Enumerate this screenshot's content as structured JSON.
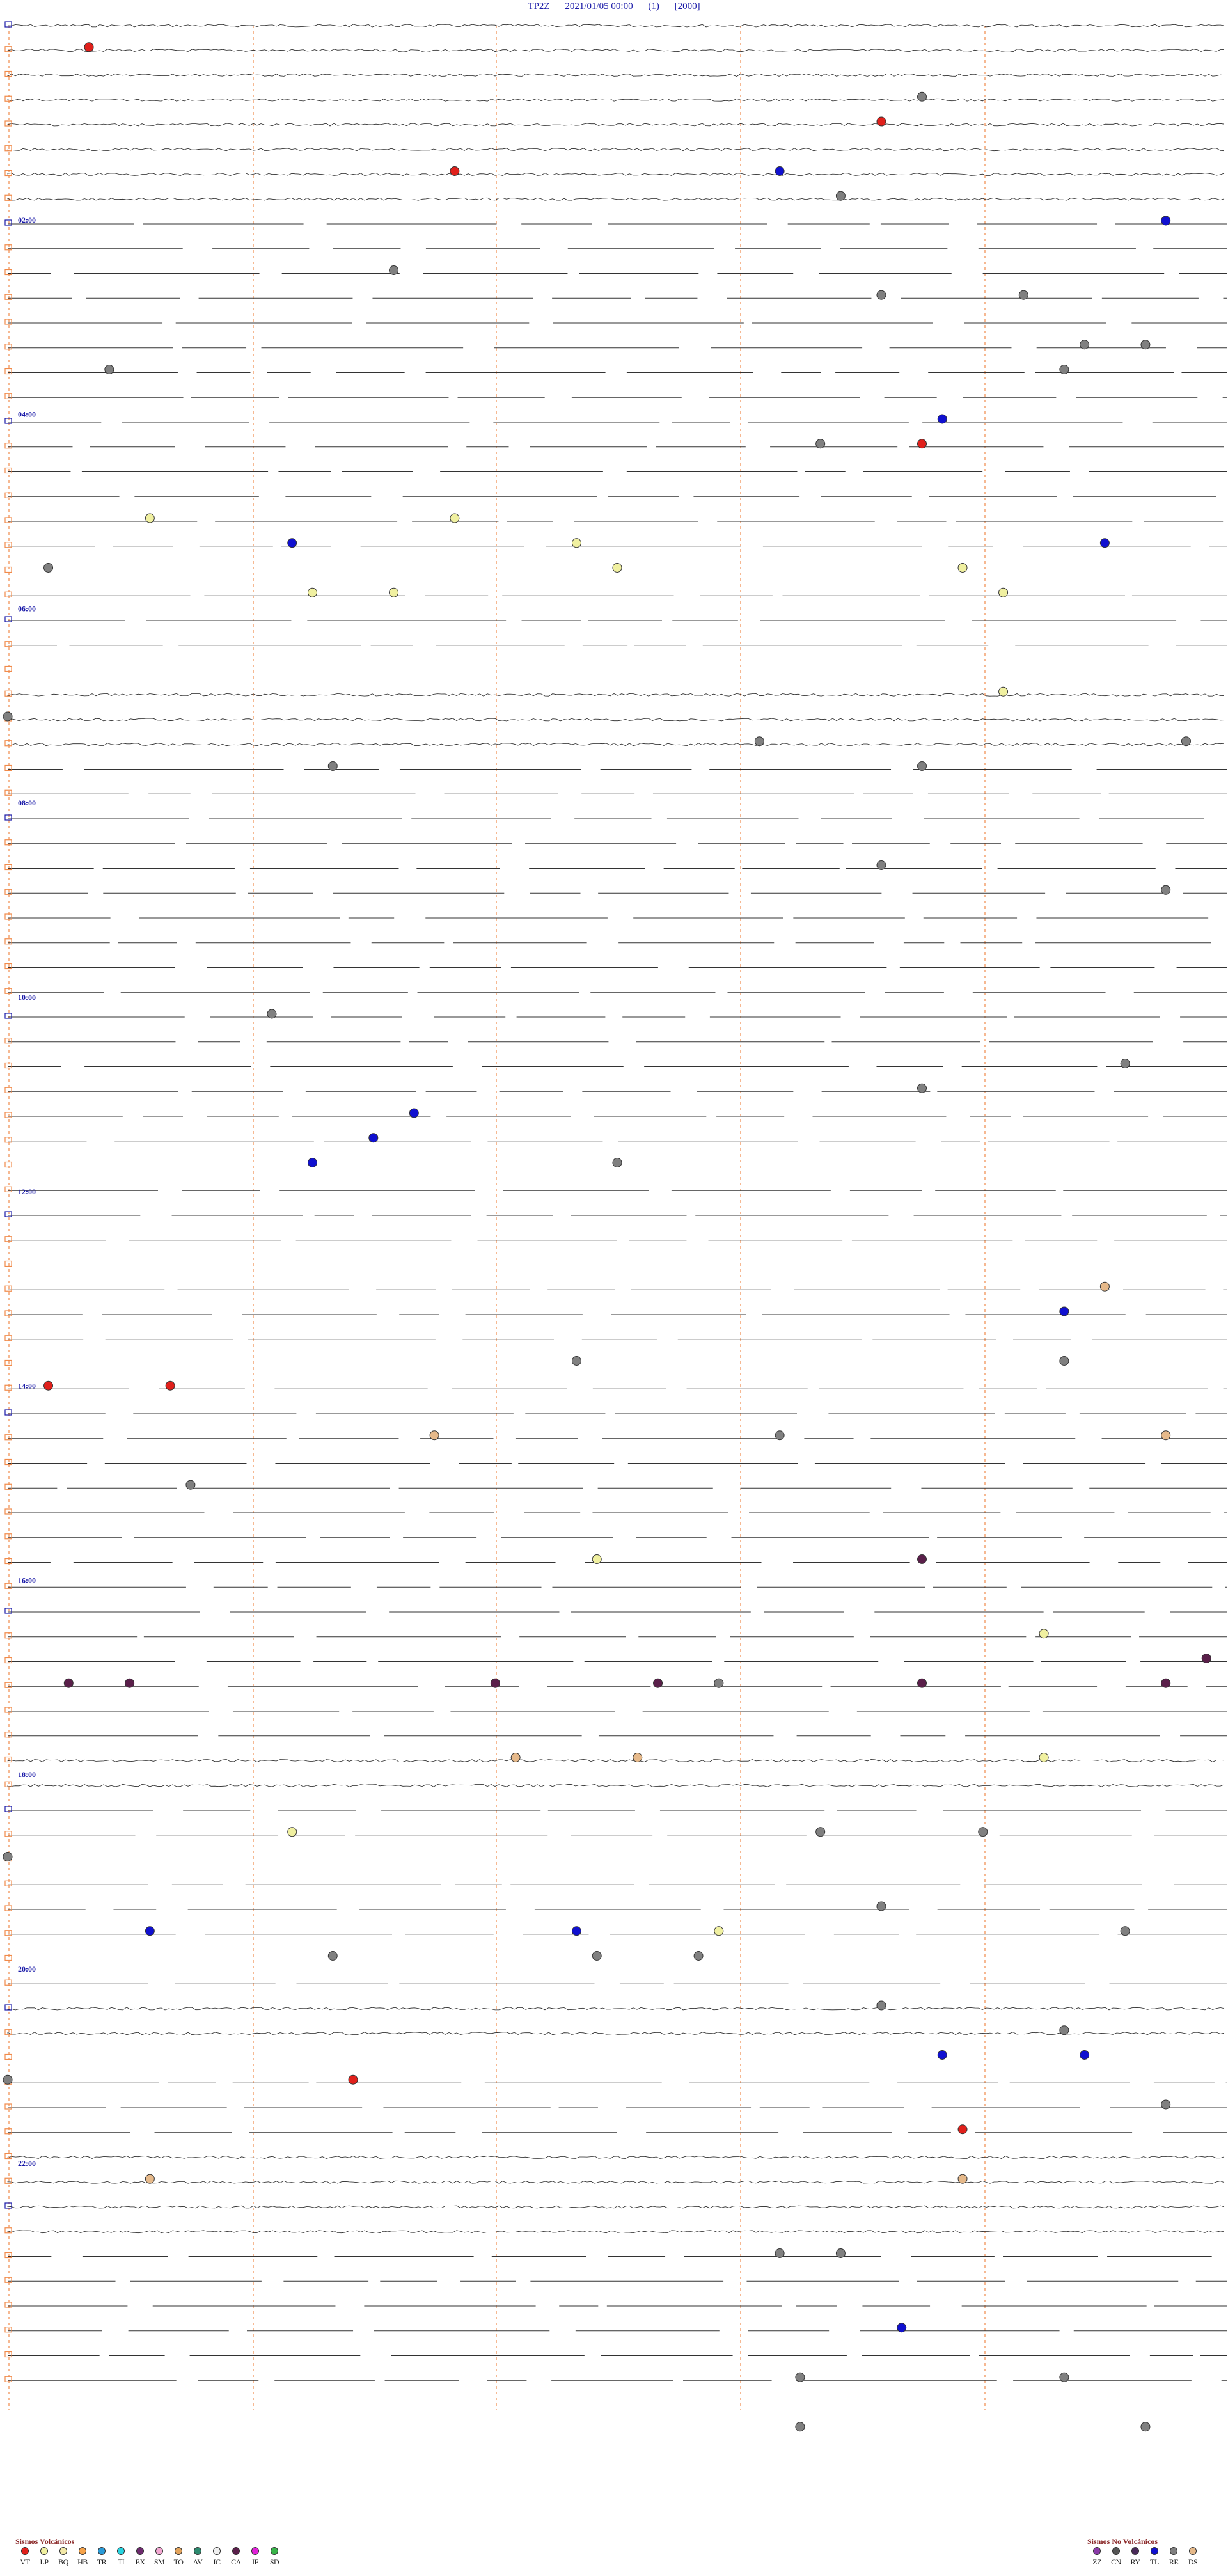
{
  "header": {
    "station": "TP2Z",
    "datetime": "2021/01/05 00:00",
    "channel": "(1)",
    "scale": "[2000]"
  },
  "hour_labels": [
    "02:00",
    "04:00",
    "06:00",
    "08:00",
    "10:00",
    "12:00",
    "14:00",
    "16:00",
    "18:00",
    "20:00",
    "22:00"
  ],
  "legend_volcanic": {
    "title": "Sismos Volcánicos",
    "items": [
      {
        "code": "VT",
        "color": "#e0201b"
      },
      {
        "code": "LP",
        "color": "#f0f0a0"
      },
      {
        "code": "BQ",
        "color": "#f3e9a8"
      },
      {
        "code": "HB",
        "color": "#f6a34a"
      },
      {
        "code": "TR",
        "color": "#2a9bd8"
      },
      {
        "code": "TI",
        "color": "#27d4e0"
      },
      {
        "code": "EX",
        "color": "#6d2a6e"
      },
      {
        "code": "SM",
        "color": "#f3a7d2"
      },
      {
        "code": "TO",
        "color": "#e2a35c"
      },
      {
        "code": "AV",
        "color": "#2d8a6f"
      },
      {
        "code": "IC",
        "color": "#f0f0f0"
      },
      {
        "code": "CA",
        "color": "#5a1f4a"
      },
      {
        "code": "IF",
        "color": "#e020d8"
      },
      {
        "code": "SD",
        "color": "#39b44a"
      }
    ]
  },
  "legend_nonvolcanic": {
    "title": "Sismos No Volcánicos",
    "items": [
      {
        "code": "ZZ",
        "color": "#8a3aa8"
      },
      {
        "code": "CN",
        "color": "#555555"
      },
      {
        "code": "RY",
        "color": "#4a2a5a"
      },
      {
        "code": "TL",
        "color": "#1010d0"
      },
      {
        "code": "RE",
        "color": "#808080"
      },
      {
        "code": "DS",
        "color": "#e6b98a"
      }
    ]
  },
  "events": [
    {
      "row": 1,
      "minute": 4,
      "type": "VT"
    },
    {
      "row": 3,
      "minute": 45,
      "type": "RE"
    },
    {
      "row": 4,
      "minute": 43,
      "type": "VT"
    },
    {
      "row": 6,
      "minute": 38,
      "type": "TL"
    },
    {
      "row": 6,
      "minute": 22,
      "type": "VT"
    },
    {
      "row": 7,
      "minute": 41,
      "type": "RE"
    },
    {
      "row": 8,
      "minute": 57,
      "type": "TL"
    },
    {
      "row": 10,
      "minute": 19,
      "type": "RE"
    },
    {
      "row": 11,
      "minute": 43,
      "type": "RE"
    },
    {
      "row": 11,
      "minute": 50,
      "type": "RE"
    },
    {
      "row": 13,
      "minute": 56,
      "type": "RE"
    },
    {
      "row": 13,
      "minute": 53,
      "type": "RE"
    },
    {
      "row": 14,
      "minute": 5,
      "type": "RE"
    },
    {
      "row": 14,
      "minute": 52,
      "type": "RE"
    },
    {
      "row": 16,
      "minute": 46,
      "type": "TL"
    },
    {
      "row": 17,
      "minute": 40,
      "type": "RE"
    },
    {
      "row": 17,
      "minute": 45,
      "type": "VT"
    },
    {
      "row": 20,
      "minute": 7,
      "type": "LP"
    },
    {
      "row": 20,
      "minute": 22,
      "type": "LP"
    },
    {
      "row": 21,
      "minute": 14,
      "type": "TL"
    },
    {
      "row": 21,
      "minute": 28,
      "type": "LP"
    },
    {
      "row": 21,
      "minute": 54,
      "type": "TL"
    },
    {
      "row": 22,
      "minute": 2,
      "type": "RE"
    },
    {
      "row": 22,
      "minute": 30,
      "type": "LP"
    },
    {
      "row": 22,
      "minute": 47,
      "type": "LP"
    },
    {
      "row": 23,
      "minute": 15,
      "type": "LP"
    },
    {
      "row": 23,
      "minute": 19,
      "type": "LP"
    },
    {
      "row": 23,
      "minute": 49,
      "type": "LP"
    },
    {
      "row": 27,
      "minute": 49,
      "type": "LP"
    },
    {
      "row": 28,
      "minute": 0,
      "type": "RE"
    },
    {
      "row": 29,
      "minute": 58,
      "type": "RE"
    },
    {
      "row": 29,
      "minute": 37,
      "type": "RE"
    },
    {
      "row": 30,
      "minute": 16,
      "type": "RE"
    },
    {
      "row": 30,
      "minute": 45,
      "type": "RE"
    },
    {
      "row": 34,
      "minute": 43,
      "type": "RE"
    },
    {
      "row": 35,
      "minute": 57,
      "type": "RE"
    },
    {
      "row": 40,
      "minute": 13,
      "type": "RE"
    },
    {
      "row": 42,
      "minute": 55,
      "type": "RE"
    },
    {
      "row": 43,
      "minute": 45,
      "type": "RE"
    },
    {
      "row": 44,
      "minute": 20,
      "type": "TL"
    },
    {
      "row": 45,
      "minute": 18,
      "type": "TL"
    },
    {
      "row": 46,
      "minute": 15,
      "type": "TL"
    },
    {
      "row": 46,
      "minute": 30,
      "type": "RE"
    },
    {
      "row": 51,
      "minute": 54,
      "type": "DS"
    },
    {
      "row": 52,
      "minute": 52,
      "type": "TL"
    },
    {
      "row": 54,
      "minute": 28,
      "type": "RE"
    },
    {
      "row": 54,
      "minute": 52,
      "type": "RE"
    },
    {
      "row": 55,
      "minute": 2,
      "type": "VT"
    },
    {
      "row": 55,
      "minute": 8,
      "type": "VT"
    },
    {
      "row": 57,
      "minute": 21,
      "type": "DS"
    },
    {
      "row": 57,
      "minute": 38,
      "type": "RE"
    },
    {
      "row": 57,
      "minute": 57,
      "type": "DS"
    },
    {
      "row": 59,
      "minute": 9,
      "type": "RE"
    },
    {
      "row": 62,
      "minute": 29,
      "type": "LP"
    },
    {
      "row": 62,
      "minute": 45,
      "type": "CA"
    },
    {
      "row": 65,
      "minute": 51,
      "type": "LP"
    },
    {
      "row": 66,
      "minute": 59,
      "type": "CA"
    },
    {
      "row": 67,
      "minute": 6,
      "type": "CA"
    },
    {
      "row": 67,
      "minute": 32,
      "type": "CA"
    },
    {
      "row": 67,
      "minute": 35,
      "type": "RE"
    },
    {
      "row": 67,
      "minute": 45,
      "type": "CA"
    },
    {
      "row": 67,
      "minute": 3,
      "type": "CA"
    },
    {
      "row": 67,
      "minute": 24,
      "type": "CA"
    },
    {
      "row": 67,
      "minute": 57,
      "type": "CA"
    },
    {
      "row": 70,
      "minute": 25,
      "type": "DS"
    },
    {
      "row": 70,
      "minute": 31,
      "type": "DS"
    },
    {
      "row": 70,
      "minute": 51,
      "type": "LP"
    },
    {
      "row": 73,
      "minute": 14,
      "type": "LP"
    },
    {
      "row": 73,
      "minute": 40,
      "type": "RE"
    },
    {
      "row": 73,
      "minute": 48,
      "type": "RE"
    },
    {
      "row": 74,
      "minute": 0,
      "type": "RE"
    },
    {
      "row": 76,
      "minute": 43,
      "type": "RE"
    },
    {
      "row": 77,
      "minute": 7,
      "type": "TL"
    },
    {
      "row": 77,
      "minute": 28,
      "type": "TL"
    },
    {
      "row": 77,
      "minute": 35,
      "type": "LP"
    },
    {
      "row": 77,
      "minute": 55,
      "type": "RE"
    },
    {
      "row": 78,
      "minute": 16,
      "type": "RE"
    },
    {
      "row": 78,
      "minute": 29,
      "type": "RE"
    },
    {
      "row": 78,
      "minute": 34,
      "type": "RE"
    },
    {
      "row": 80,
      "minute": 43,
      "type": "RE"
    },
    {
      "row": 81,
      "minute": 52,
      "type": "RE"
    },
    {
      "row": 82,
      "minute": 46,
      "type": "TL"
    },
    {
      "row": 82,
      "minute": 53,
      "type": "TL"
    },
    {
      "row": 83,
      "minute": 0,
      "type": "RE"
    },
    {
      "row": 83,
      "minute": 17,
      "type": "VT"
    },
    {
      "row": 84,
      "minute": 57,
      "type": "RE"
    },
    {
      "row": 85,
      "minute": 47,
      "type": "VT"
    },
    {
      "row": 87,
      "minute": 7,
      "type": "DS"
    },
    {
      "row": 87,
      "minute": 47,
      "type": "DS"
    },
    {
      "row": 90,
      "minute": 41,
      "type": "RE"
    },
    {
      "row": 90,
      "minute": 38,
      "type": "RE"
    },
    {
      "row": 93,
      "minute": 44,
      "type": "TL"
    },
    {
      "row": 95,
      "minute": 39,
      "type": "RE"
    },
    {
      "row": 95,
      "minute": 52,
      "type": "RE"
    },
    {
      "row": 97,
      "minute": 39,
      "type": "RE"
    },
    {
      "row": 97,
      "minute": 56,
      "type": "RE"
    }
  ]
}
